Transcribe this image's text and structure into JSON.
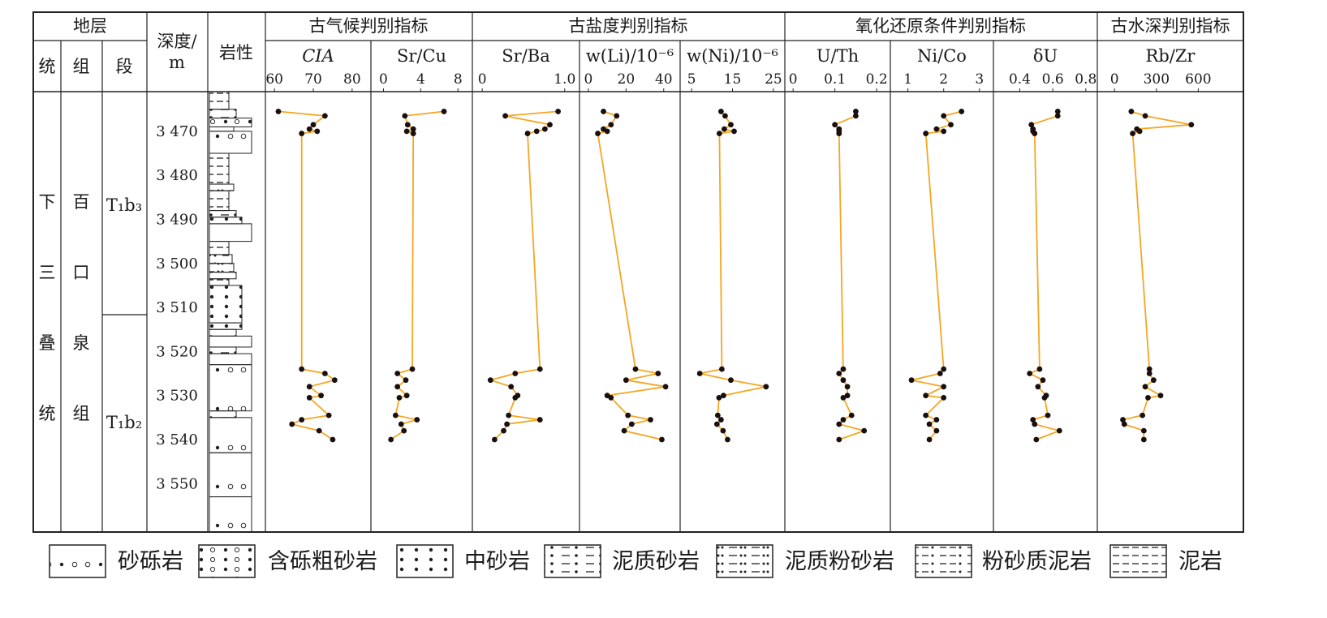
{
  "header": {
    "stratum": "地层",
    "system": "统",
    "formation": "组",
    "member": "段",
    "depth": [
      "深度/",
      "m"
    ],
    "lithology": "岩性",
    "group_paleoclimate": "古气候判别指标",
    "group_paleosalinity": "古盐度判别指标",
    "group_redox": "氧化还原条件判别指标",
    "group_depth": "古水深判别指标"
  },
  "strat": {
    "system_chars": [
      "下",
      "三",
      "叠",
      "统"
    ],
    "formation_chars": [
      "百",
      "口",
      "泉",
      "组"
    ],
    "member_upper": "T₁b₃",
    "member_lower": "T₁b₂"
  },
  "depth_axis": {
    "ticks": [
      3470,
      3480,
      3490,
      3500,
      3510,
      3520,
      3530,
      3540,
      3550
    ],
    "labels": [
      "3 470",
      "3 480",
      "3 490",
      "3 500",
      "3 510",
      "3 520",
      "3 530",
      "3 540",
      "3 550"
    ],
    "range": [
      3461,
      3561
    ]
  },
  "lithology_layers": [
    {
      "top": 3461.0,
      "bottom": 3465.0,
      "type": "mudstone"
    },
    {
      "top": 3465.0,
      "bottom": 3467.0,
      "type": "muddy_sandstone"
    },
    {
      "top": 3467.0,
      "bottom": 3469.0,
      "type": "gravelly_coarse_sandstone"
    },
    {
      "top": 3469.0,
      "bottom": 3470.0,
      "type": "muddy_siltstone"
    },
    {
      "top": 3470.0,
      "bottom": 3475.0,
      "type": "conglomerate"
    },
    {
      "top": 3475.0,
      "bottom": 3482.0,
      "type": "mudstone"
    },
    {
      "top": 3482.0,
      "bottom": 3483.5,
      "type": "muddy_siltstone"
    },
    {
      "top": 3483.5,
      "bottom": 3488.0,
      "type": "mudstone"
    },
    {
      "top": 3488.0,
      "bottom": 3489.5,
      "type": "muddy_sandstone"
    },
    {
      "top": 3489.5,
      "bottom": 3491.0,
      "type": "medium_sandstone"
    },
    {
      "top": 3491.0,
      "bottom": 3495.0,
      "type": "conglomerate"
    },
    {
      "top": 3495.0,
      "bottom": 3498.0,
      "type": "mudstone"
    },
    {
      "top": 3498.0,
      "bottom": 3500.0,
      "type": "silty_mudstone"
    },
    {
      "top": 3500.0,
      "bottom": 3502.0,
      "type": "muddy_siltstone"
    },
    {
      "top": 3502.0,
      "bottom": 3503.5,
      "type": "muddy_sandstone"
    },
    {
      "top": 3503.5,
      "bottom": 3505.0,
      "type": "mudstone"
    },
    {
      "top": 3505.0,
      "bottom": 3513.5,
      "type": "medium_sandstone"
    },
    {
      "top": 3513.5,
      "bottom": 3515.0,
      "type": "medium_sandstone"
    },
    {
      "top": 3515.0,
      "bottom": 3516.5,
      "type": "muddy_sandstone"
    },
    {
      "top": 3516.5,
      "bottom": 3519.0,
      "type": "conglomerate"
    },
    {
      "top": 3519.0,
      "bottom": 3520.5,
      "type": "muddy_sandstone"
    },
    {
      "top": 3520.5,
      "bottom": 3523.0,
      "type": "conglomerate"
    },
    {
      "top": 3523.0,
      "bottom": 3533.5,
      "type": "conglomerate"
    },
    {
      "top": 3533.5,
      "bottom": 3535.0,
      "type": "muddy_sandstone"
    },
    {
      "top": 3535.0,
      "bottom": 3543.0,
      "type": "conglomerate"
    },
    {
      "top": 3543.0,
      "bottom": 3553.0,
      "type": "conglomerate"
    },
    {
      "top": 3553.0,
      "bottom": 3561.0,
      "type": "conglomerate"
    }
  ],
  "legend": [
    {
      "type": "conglomerate",
      "label": "砂砾岩"
    },
    {
      "type": "gravelly_coarse_sandstone",
      "label": "含砾粗砂岩"
    },
    {
      "type": "medium_sandstone",
      "label": "中砂岩"
    },
    {
      "type": "muddy_sandstone",
      "label": "泥质砂岩"
    },
    {
      "type": "muddy_siltstone",
      "label": "泥质粉砂岩"
    },
    {
      "type": "silty_mudstone",
      "label": "粉砂质泥岩"
    },
    {
      "type": "mudstone",
      "label": "泥岩"
    }
  ],
  "colors": {
    "line": "#f5a623",
    "point": "#1a0f0f",
    "frame": "#222222"
  },
  "chart_data": {
    "type": "line",
    "y_axis": "depth (m)",
    "depths": [
      3465.5,
      3466.5,
      3468.5,
      3469.5,
      3470.0,
      3470.5,
      3524.0,
      3525.0,
      3526.5,
      3528.0,
      3530.0,
      3530.5,
      3534.5,
      3535.5,
      3536.5,
      3538.0,
      3540.0
    ],
    "panels": [
      {
        "label": "CIA",
        "italic": true,
        "ticks": [
          60,
          70,
          80
        ],
        "xlim": [
          58.5,
          84
        ],
        "values": [
          61,
          73,
          70,
          69,
          71,
          67,
          67,
          73,
          75.5,
          69,
          72,
          69,
          74,
          67,
          64.5,
          71.5,
          75
        ]
      },
      {
        "label": "Sr/Cu",
        "ticks": [
          0,
          4,
          8
        ],
        "xlim": [
          -1,
          9.2
        ],
        "values": [
          6.5,
          2.3,
          2.6,
          3.2,
          2.5,
          3.2,
          3.1,
          1.5,
          2.4,
          1.5,
          2.5,
          1.7,
          1.3,
          3.6,
          1.9,
          2.2,
          0.8
        ]
      },
      {
        "label": "Sr/Ba",
        "ticks": [
          0,
          1.0
        ],
        "xlim": [
          -0.08,
          1.14
        ],
        "ticklabels": [
          "0",
          "1.0"
        ],
        "values": [
          0.92,
          0.28,
          0.82,
          0.76,
          0.66,
          0.55,
          0.7,
          0.4,
          0.1,
          0.35,
          0.43,
          0.4,
          0.32,
          0.7,
          0.3,
          0.26,
          0.15
        ]
      },
      {
        "label": "w(Li)/10⁻⁶",
        "ticks": [
          0,
          20,
          40
        ],
        "xlim": [
          -3,
          47
        ],
        "values": [
          8,
          15,
          12,
          8,
          10,
          5,
          25,
          37,
          20,
          41,
          10,
          12,
          21,
          33,
          23,
          19,
          39
        ]
      },
      {
        "label": "w(Ni)/10⁻⁶",
        "ticks": [
          5,
          15,
          25
        ],
        "xlim": [
          3,
          27
        ],
        "values": [
          12.2,
          13.2,
          14.6,
          13,
          15.4,
          11.8,
          12.4,
          7,
          14.6,
          23.2,
          12.8,
          11.7,
          11.4,
          12.2,
          11.2,
          12.7,
          13.8
        ]
      },
      {
        "label": "U/Th",
        "ticks": [
          0,
          0.1,
          0.2
        ],
        "ticklabels": [
          "0",
          "0.1",
          "0.2"
        ],
        "xlim": [
          -0.012,
          0.225
        ],
        "values": [
          0.15,
          0.15,
          0.1,
          0.11,
          0.11,
          0.11,
          0.12,
          0.11,
          0.12,
          0.13,
          0.13,
          0.12,
          0.14,
          0.12,
          0.11,
          0.17,
          0.11
        ]
      },
      {
        "label": "Ni/Co",
        "ticks": [
          1,
          2,
          3
        ],
        "xlim": [
          0.6,
          3.3
        ],
        "values": [
          2.5,
          2,
          2.2,
          1.8,
          2,
          1.5,
          2,
          1.9,
          1.1,
          2,
          1.5,
          2,
          1.5,
          1.8,
          1.6,
          1.8,
          1.6
        ]
      },
      {
        "label": "δU",
        "ticks": [
          0.4,
          0.6,
          0.8
        ],
        "xlim": [
          0.26,
          0.85
        ],
        "values": [
          0.63,
          0.63,
          0.47,
          0.48,
          0.48,
          0.49,
          0.52,
          0.46,
          0.54,
          0.51,
          0.56,
          0.55,
          0.57,
          0.48,
          0.49,
          0.64,
          0.5
        ]
      },
      {
        "label": "Rb/Zr",
        "ticks": [
          0,
          300,
          600
        ],
        "xlim": [
          -100,
          900
        ],
        "values": [
          120,
          220,
          550,
          160,
          180,
          130,
          250,
          250,
          280,
          220,
          330,
          240,
          200,
          60,
          70,
          210,
          210
        ]
      }
    ]
  }
}
